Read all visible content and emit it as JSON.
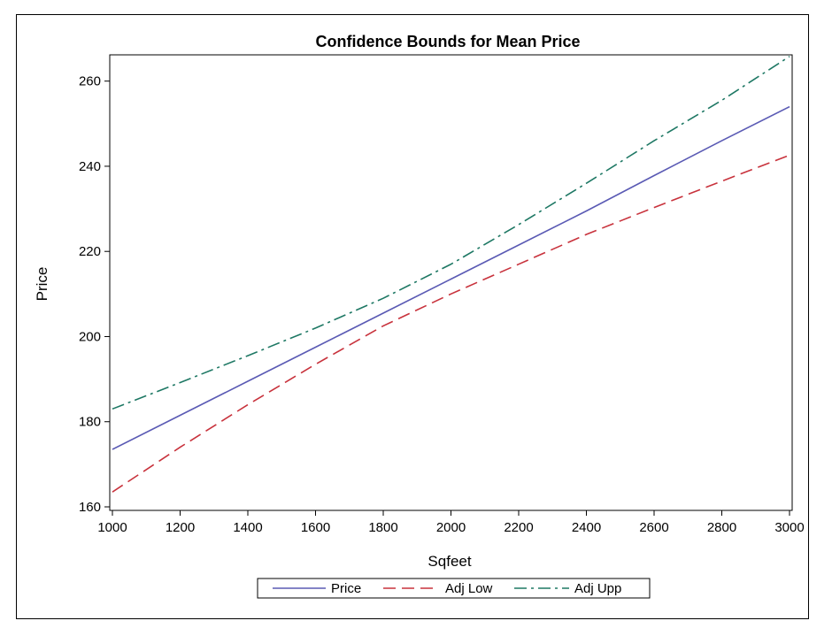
{
  "chart_data": {
    "type": "line",
    "title": "Confidence Bounds for Mean Price",
    "xlabel": "Sqfeet",
    "ylabel": "Price",
    "xlim": [
      1000,
      3000
    ],
    "ylim": [
      160,
      267
    ],
    "x_ticks": [
      1000,
      1200,
      1400,
      1600,
      1800,
      2000,
      2200,
      2400,
      2600,
      2800,
      3000
    ],
    "y_ticks": [
      160,
      180,
      200,
      220,
      240,
      260
    ],
    "grid": false,
    "legend_position": "bottom",
    "x": [
      1000,
      1200,
      1400,
      1600,
      1800,
      2000,
      2200,
      2400,
      2600,
      2800,
      3000
    ],
    "series": [
      {
        "name": "Price",
        "color": "#5a5ab4",
        "dash": "solid",
        "values": [
          173.5,
          181.5,
          189.5,
          197.5,
          205.5,
          213.5,
          221.5,
          229.5,
          237.8,
          246.0,
          254.0
        ]
      },
      {
        "name": "Adj Low",
        "color": "#c8323c",
        "dash": "dashed",
        "values": [
          163.5,
          174.0,
          184.0,
          193.5,
          202.5,
          210.0,
          217.0,
          224.0,
          230.3,
          236.5,
          242.6
        ]
      },
      {
        "name": "Adj Upp",
        "color": "#1e7864",
        "dash": "dashdot",
        "values": [
          183.0,
          189.2,
          195.5,
          202.0,
          209.0,
          217.0,
          226.3,
          236.0,
          246.0,
          255.5,
          265.8
        ]
      }
    ]
  }
}
